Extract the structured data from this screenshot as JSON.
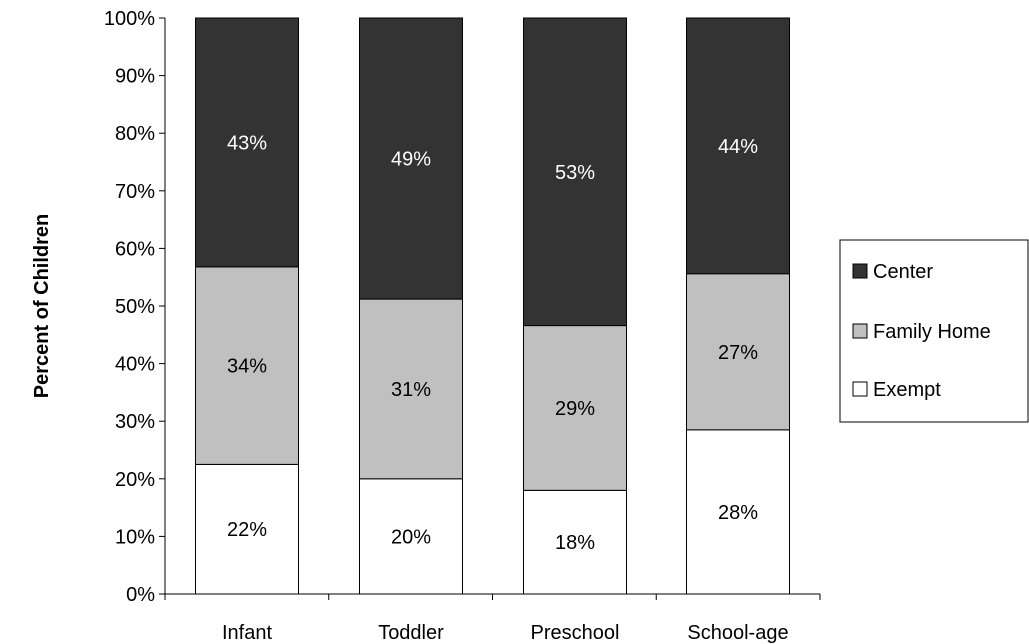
{
  "chart_data": {
    "type": "bar",
    "stacked": true,
    "categories": [
      "Infant",
      "Toddler",
      "Preschool",
      "School-age"
    ],
    "series": [
      {
        "name": "Exempt",
        "values": [
          22.5,
          20.0,
          18.0,
          28.5
        ],
        "labels": [
          "22%",
          "20%",
          "18%",
          "28%"
        ],
        "color": "#ffffff",
        "label_color": "#000000"
      },
      {
        "name": "Family Home",
        "values": [
          34.3,
          31.2,
          28.6,
          27.1
        ],
        "labels": [
          "34%",
          "31%",
          "29%",
          "27%"
        ],
        "color": "#c0c0c0",
        "label_color": "#000000"
      },
      {
        "name": "Center",
        "values": [
          43.2,
          48.8,
          53.4,
          44.4
        ],
        "labels": [
          "43%",
          "49%",
          "53%",
          "44%"
        ],
        "color": "#333333",
        "label_color": "#ffffff"
      }
    ],
    "legend_order": [
      "Center",
      "Family Home",
      "Exempt"
    ],
    "ylabel": "Percent of Children",
    "xlabel": "",
    "ylim": [
      0,
      100
    ],
    "ytick_step": 10,
    "ytick_labels": [
      "0%",
      "10%",
      "20%",
      "30%",
      "40%",
      "50%",
      "60%",
      "70%",
      "80%",
      "90%",
      "100%"
    ],
    "grid": false,
    "legend_position": "right"
  }
}
